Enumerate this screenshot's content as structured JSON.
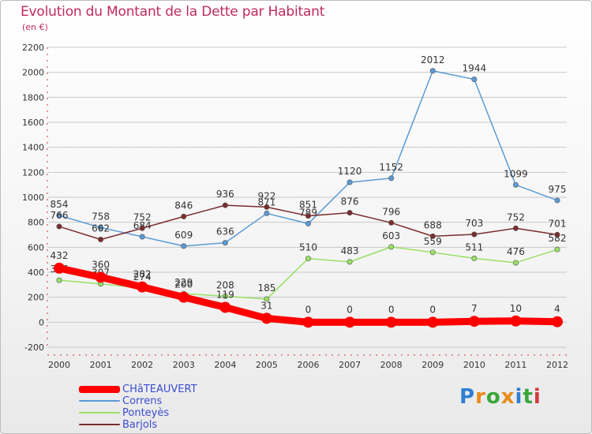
{
  "title": "Evolution du Montant de la Dette par Habitant",
  "subtitle": "(en €)",
  "logo": "Proxiti",
  "colors": {
    "title": "#c0285e",
    "legend_text": "#3a4ed0",
    "grid": "#c8c8c8",
    "axis_text": "#333333"
  },
  "chart_data": {
    "type": "line",
    "title": "Evolution du Montant de la Dette par Habitant",
    "subtitle": "(en €)",
    "x": [
      "2000",
      "2001",
      "2002",
      "2003",
      "2004",
      "2005",
      "2006",
      "2007",
      "2008",
      "2009",
      "2010",
      "2011",
      "2012"
    ],
    "ylim": [
      -200,
      2200
    ],
    "yticks": [
      -200,
      0,
      200,
      400,
      600,
      800,
      1000,
      1200,
      1400,
      1600,
      1800,
      2000,
      2200
    ],
    "grid": "horizontal",
    "legend_position": "bottom-left",
    "series": [
      {
        "name": "CHâTEAUVERT",
        "color": "#ff0000",
        "values": [
          432,
          360,
          282,
          200,
          119,
          31,
          0,
          0,
          0,
          0,
          7,
          10,
          4
        ]
      },
      {
        "name": "Correns",
        "color": "#5b9bd5",
        "values": [
          854,
          758,
          684,
          609,
          636,
          871,
          789,
          1120,
          1152,
          2012,
          1944,
          1099,
          975
        ]
      },
      {
        "name": "Ponteyès",
        "color": "#99e066",
        "values": [
          336,
          307,
          274,
          229,
          208,
          185,
          510,
          483,
          603,
          559,
          511,
          476,
          582
        ]
      },
      {
        "name": "Barjols",
        "color": "#7b2d2d",
        "values": [
          766,
          662,
          752,
          846,
          936,
          922,
          851,
          876,
          796,
          688,
          703,
          752,
          701
        ]
      }
    ]
  }
}
